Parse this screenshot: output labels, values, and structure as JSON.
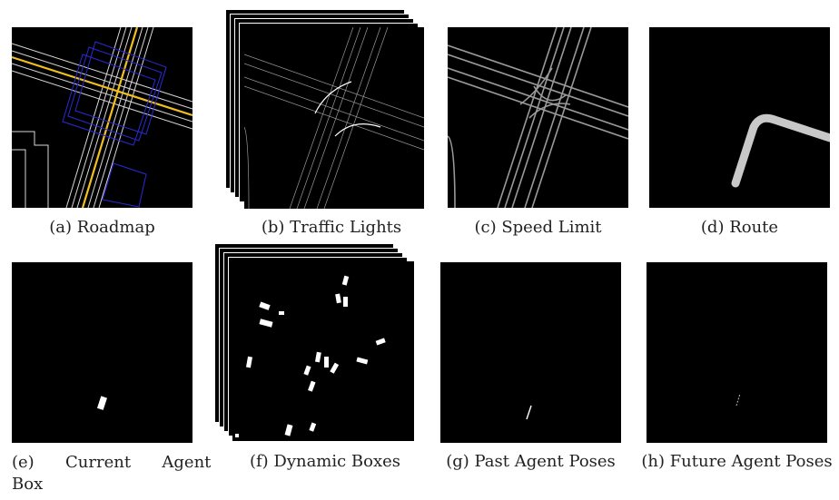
{
  "captions": {
    "a": "(a) Roadmap",
    "b": "(b) Traffic Lights",
    "c": "(c) Speed Limit",
    "d": "(d) Route",
    "e_line1": "(e)      Current      Agent",
    "e_line2": "Box",
    "f": "(f) Dynamic Boxes",
    "g": "(g) Past Agent Poses",
    "h": "(h) Future Agent Poses"
  },
  "colors": {
    "background": "#000000",
    "lane_white": "#ffffff",
    "lane_yellow": "#f0c020",
    "crosswalk_blue": "#2a2ad6",
    "speed_gray": "#9a9a9a",
    "route_gray": "#c8c8c8",
    "box_white": "#ffffff"
  }
}
